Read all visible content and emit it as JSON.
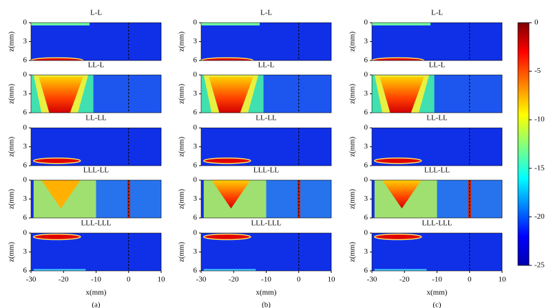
{
  "chart_data": {
    "type": "heatmap",
    "columns": [
      "(a)",
      "(b)",
      "(c)"
    ],
    "panels": [
      "L-L",
      "LL-L",
      "LL-LL",
      "LLL-LL",
      "LLL-LLL"
    ],
    "xlabel": "x(mm)",
    "ylabel": "z(mm)",
    "xlim": [
      -30,
      10
    ],
    "xticks": [
      -30,
      -20,
      -10,
      0,
      10
    ],
    "ylim": [
      0,
      6
    ],
    "yticks": [
      0,
      3,
      6
    ],
    "colorbar": {
      "lim": [
        -25,
        0
      ],
      "ticks": [
        0,
        -5,
        -10,
        -15,
        -20,
        -25
      ]
    }
  }
}
